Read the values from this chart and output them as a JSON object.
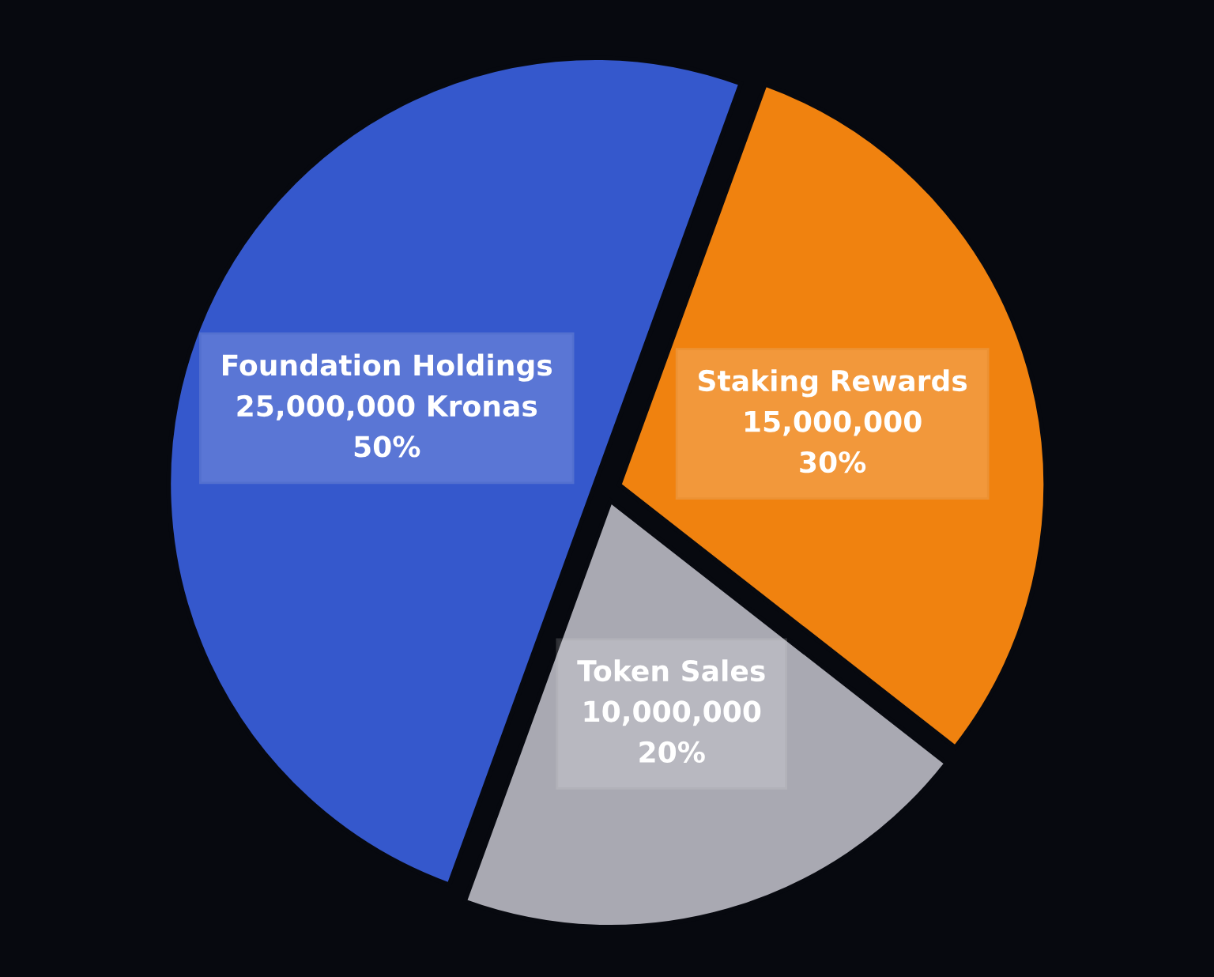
{
  "chart_data": {
    "type": "pie",
    "categories": [
      "Foundation Holdings",
      "Staking Rewards",
      "Token Sales"
    ],
    "values": [
      25000000,
      15000000,
      10000000
    ],
    "value_labels": [
      "25,000,000 Kronas\n50%",
      "15,000,000\n30%",
      "10,000,000\n20%"
    ],
    "colors": [
      "#3558cc",
      "#f0820f",
      "#a9a9b2"
    ]
  }
}
